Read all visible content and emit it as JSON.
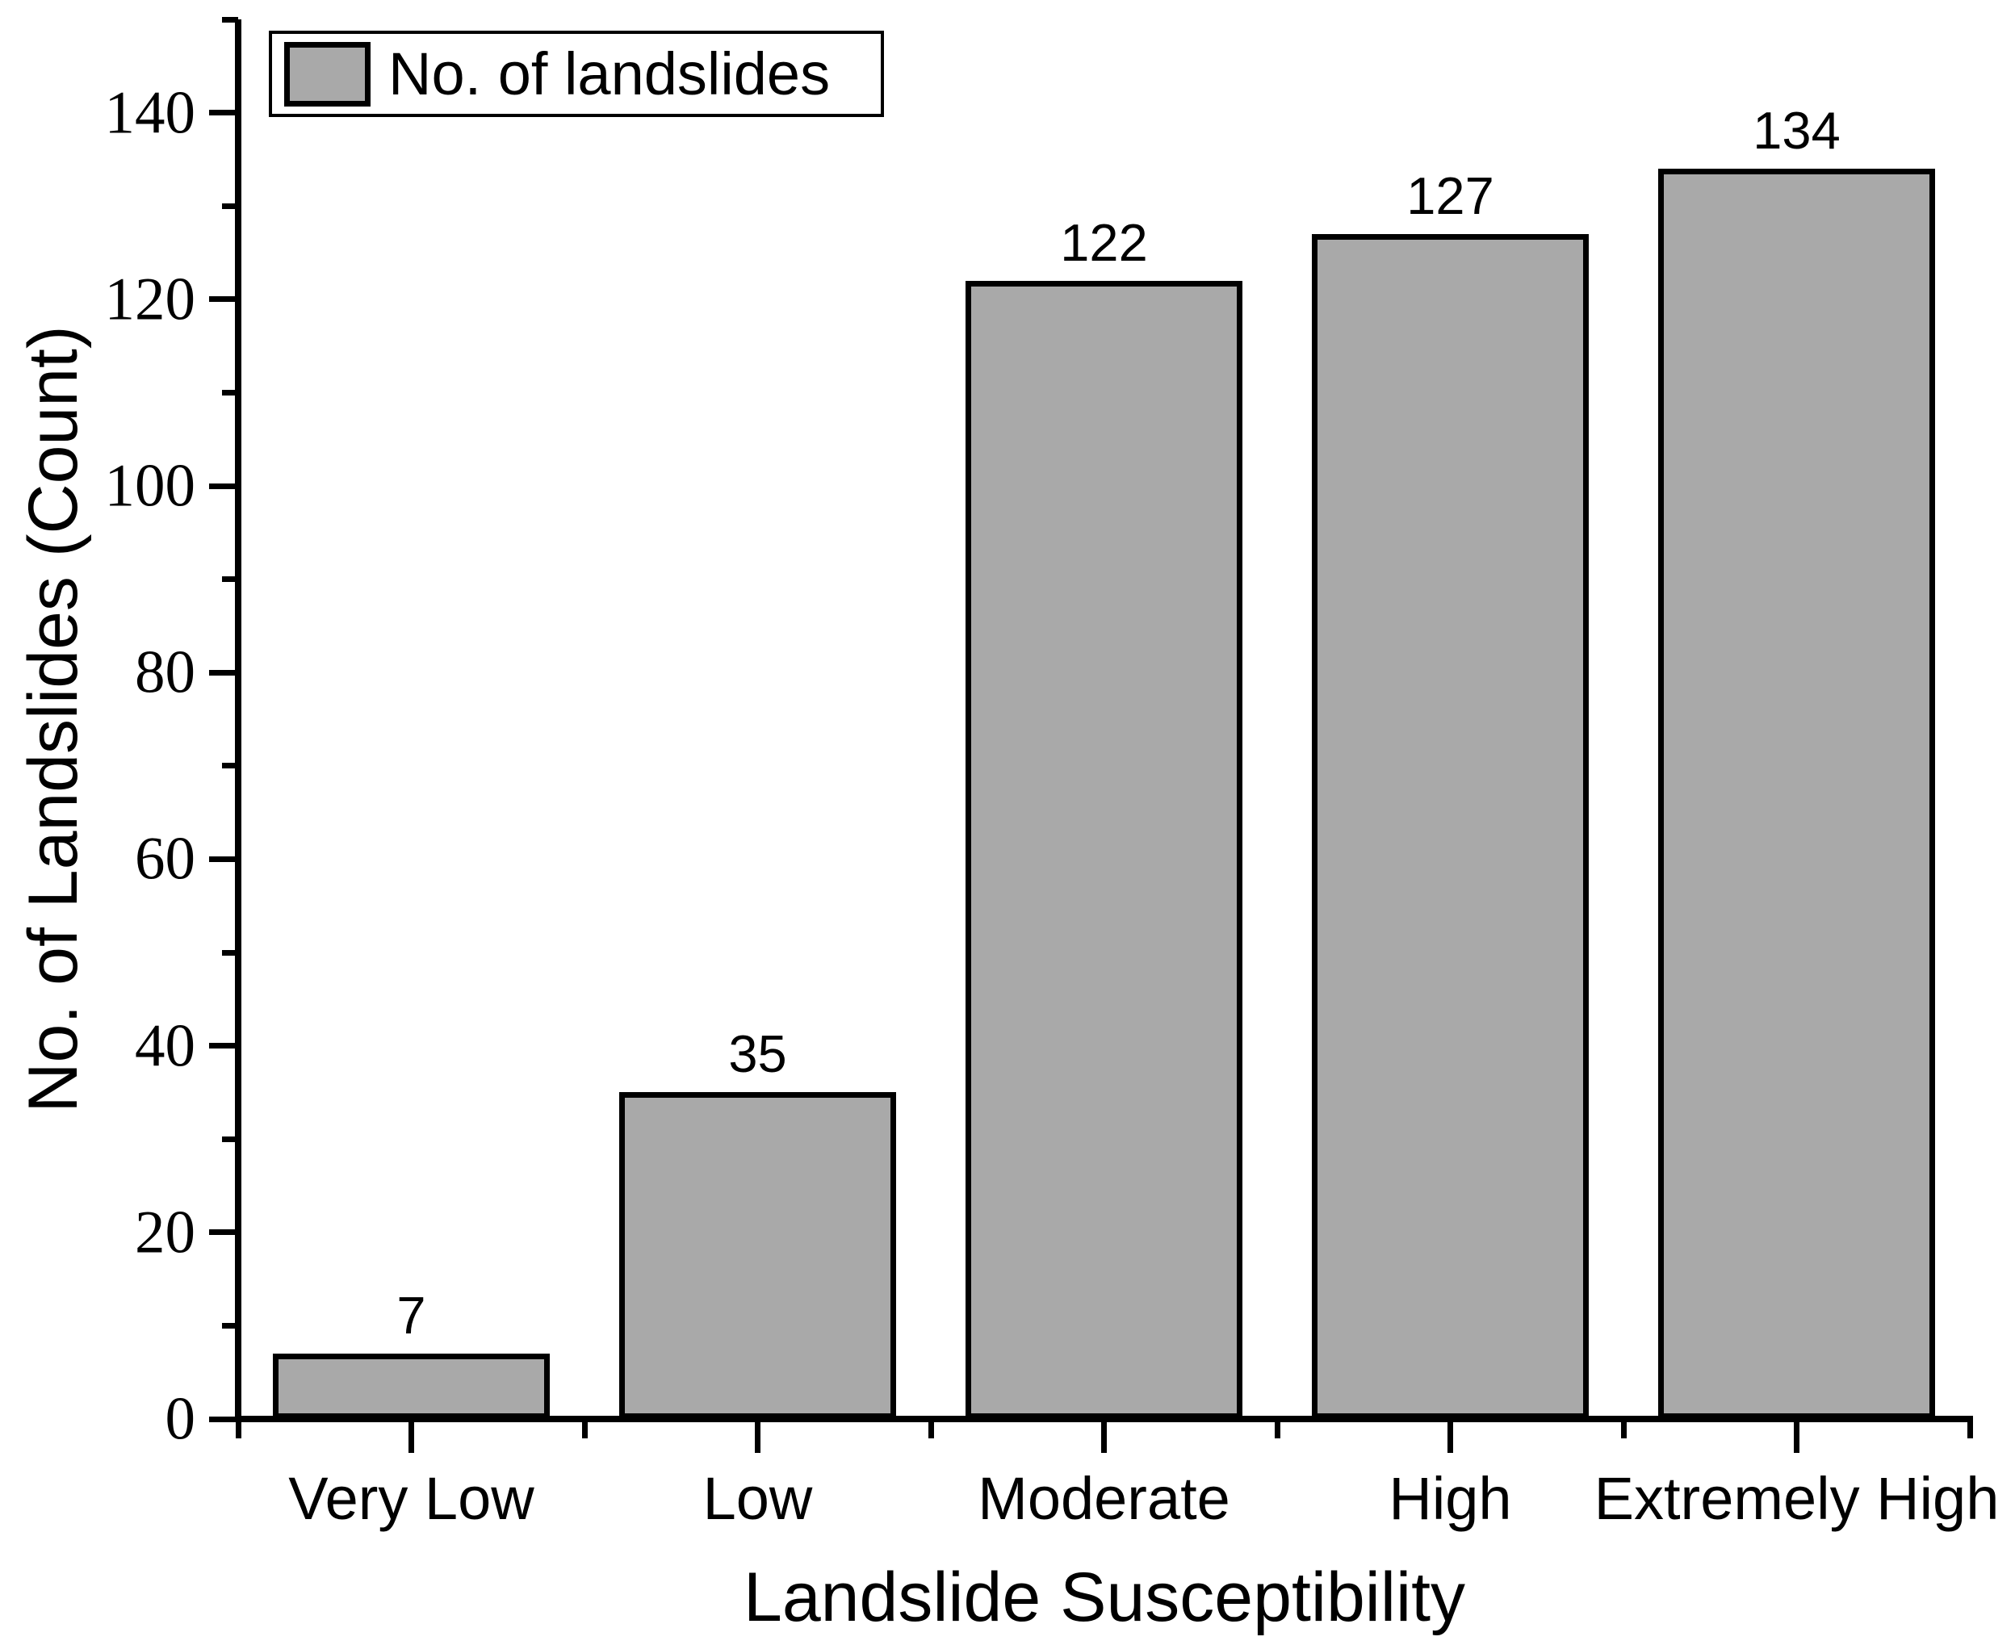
{
  "chart_data": {
    "type": "bar",
    "categories": [
      "Very Low",
      "Low",
      "Moderate",
      "High",
      "Extremely High"
    ],
    "values": [
      7,
      35,
      122,
      127,
      134
    ],
    "series_name": "No. of landslides",
    "title": "",
    "xlabel": "Landslide Susceptibility",
    "ylabel": "No. of Landslides (Count)",
    "ylim": [
      0,
      150
    ],
    "ytick_major_interval": 20,
    "ytick_minor_interval": 10,
    "ytick_labels": [
      "0",
      "20",
      "40",
      "60",
      "80",
      "100",
      "120",
      "140"
    ],
    "value_labels_shown": true,
    "grid": false,
    "bar_color": "#a9a9a9",
    "bar_border_color": "#000000",
    "axis_color": "#000000",
    "legend": {
      "label": "No. of landslides",
      "position": "top-left",
      "swatch_color": "#a9a9a9"
    }
  }
}
